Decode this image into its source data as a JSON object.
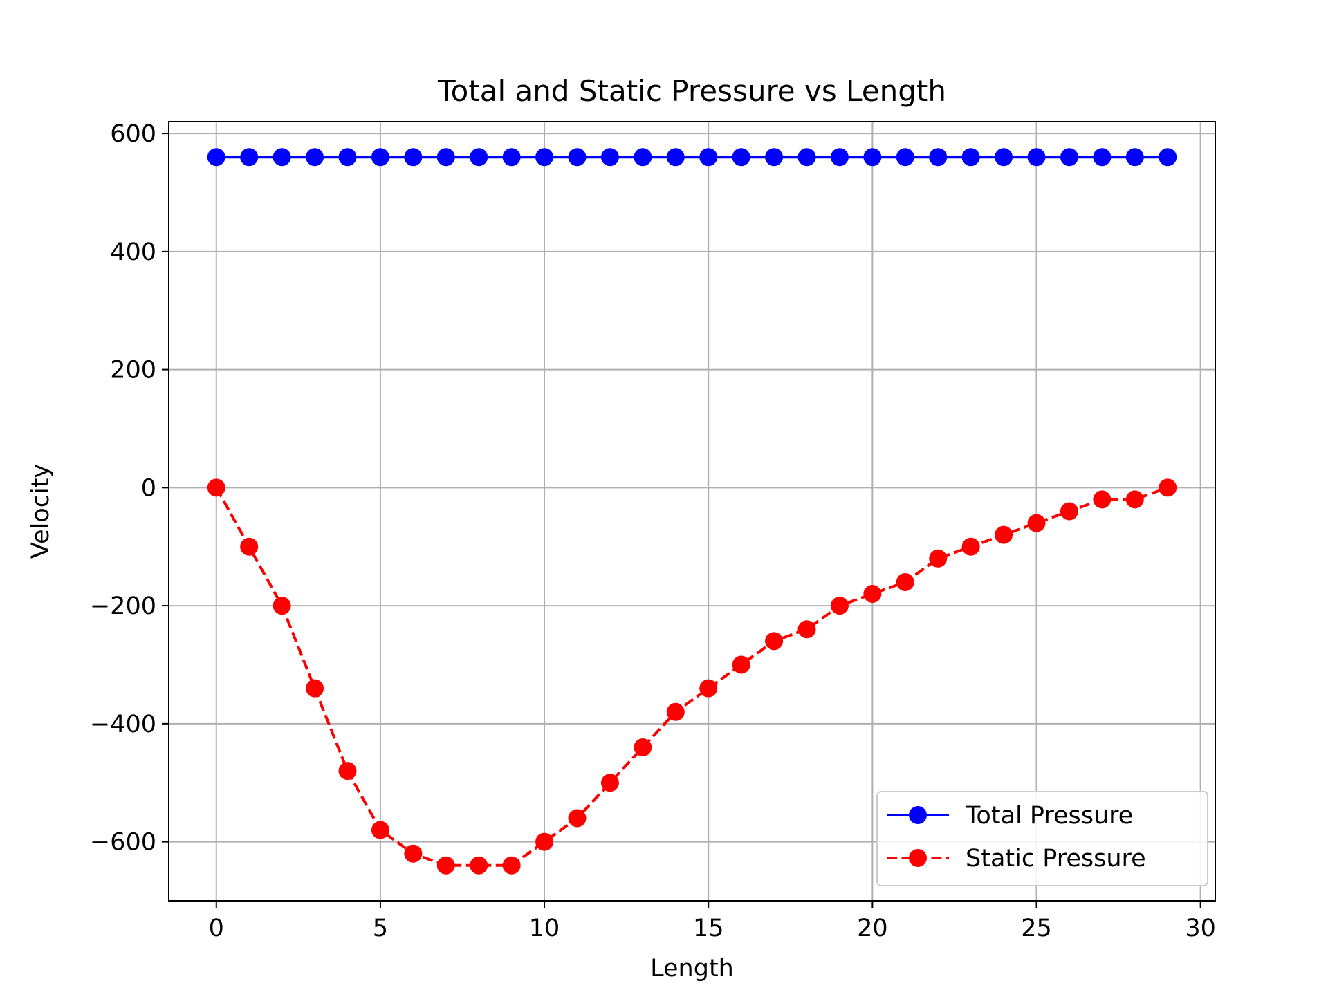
{
  "chart_data": {
    "type": "line",
    "title": "Total and Static Pressure vs Length",
    "xlabel": "Length",
    "ylabel": "Velocity",
    "xlim": [
      -1.45,
      30.45
    ],
    "ylim": [
      -700,
      620
    ],
    "xticks": [
      0,
      5,
      10,
      15,
      20,
      25,
      30
    ],
    "xtick_labels": [
      "0",
      "5",
      "10",
      "15",
      "20",
      "25",
      "30"
    ],
    "yticks": [
      -600,
      -400,
      -200,
      0,
      200,
      400,
      600
    ],
    "ytick_labels": [
      "−600",
      "−400",
      "−200",
      "0",
      "200",
      "400",
      "600"
    ],
    "grid": true,
    "legend_position": "lower-right",
    "x": [
      0,
      1,
      2,
      3,
      4,
      5,
      6,
      7,
      8,
      9,
      10,
      11,
      12,
      13,
      14,
      15,
      16,
      17,
      18,
      19,
      20,
      21,
      22,
      23,
      24,
      25,
      26,
      27,
      28,
      29
    ],
    "series": [
      {
        "name": "Total Pressure",
        "color": "#0000ff",
        "line_style": "solid",
        "marker": "circle",
        "values": [
          560,
          560,
          560,
          560,
          560,
          560,
          560,
          560,
          560,
          560,
          560,
          560,
          560,
          560,
          560,
          560,
          560,
          560,
          560,
          560,
          560,
          560,
          560,
          560,
          560,
          560,
          560,
          560,
          560,
          560
        ]
      },
      {
        "name": "Static Pressure",
        "color": "#ff0000",
        "line_style": "dashed",
        "marker": "circle",
        "values": [
          0,
          -100,
          -200,
          -340,
          -480,
          -580,
          -620,
          -640,
          -640,
          -640,
          -600,
          -560,
          -500,
          -440,
          -380,
          -340,
          -300,
          -260,
          -240,
          -200,
          -180,
          -160,
          -120,
          -100,
          -80,
          -60,
          -40,
          -20,
          -20,
          0
        ]
      }
    ]
  }
}
